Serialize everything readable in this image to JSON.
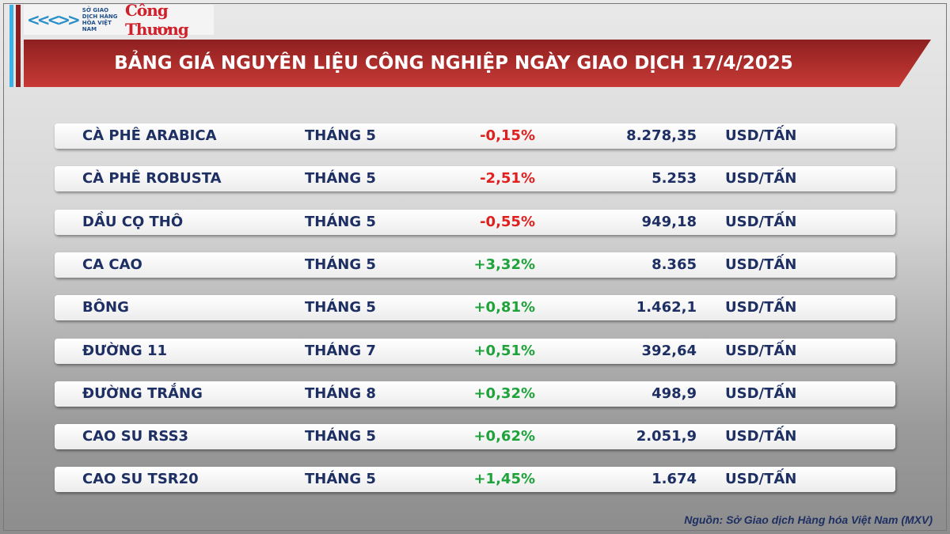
{
  "logo": {
    "org": "SỞ GIAO DỊCH HÀNG HÓA VIỆT NAM",
    "brand": "Công Thương"
  },
  "title": "BẢNG GIÁ NGUYÊN LIỆU CÔNG NGHIỆP NGÀY GIAO DỊCH 17/4/2025",
  "colors": {
    "negative": "#e0201e",
    "positive": "#1ea33a",
    "text": "#1e2f63",
    "banner": "#b0302c"
  },
  "rows": [
    {
      "name": "CÀ PHÊ ARABICA",
      "month": "THÁNG 5",
      "change": "-0,15%",
      "price": "8.278,35",
      "unit": "USD/TẤN"
    },
    {
      "name": "CÀ PHÊ ROBUSTA",
      "month": "THÁNG 5",
      "change": "-2,51%",
      "price": "5.253",
      "unit": "USD/TẤN"
    },
    {
      "name": "DẦU CỌ THÔ",
      "month": "THÁNG 5",
      "change": "-0,55%",
      "price": "949,18",
      "unit": "USD/TẤN"
    },
    {
      "name": "CA CAO",
      "month": "THÁNG 5",
      "change": "+3,32%",
      "price": "8.365",
      "unit": "USD/TẤN"
    },
    {
      "name": "BÔNG",
      "month": "THÁNG 5",
      "change": "+0,81%",
      "price": "1.462,1",
      "unit": "USD/TẤN"
    },
    {
      "name": "ĐƯỜNG 11",
      "month": "THÁNG 7",
      "change": "+0,51%",
      "price": "392,64",
      "unit": "USD/TẤN"
    },
    {
      "name": "ĐƯỜNG TRẮNG",
      "month": "THÁNG 8",
      "change": "+0,32%",
      "price": "498,9",
      "unit": "USD/TẤN"
    },
    {
      "name": "CAO SU RSS3",
      "month": "THÁNG 5",
      "change": "+0,62%",
      "price": "2.051,9",
      "unit": "USD/TẤN"
    },
    {
      "name": "CAO SU TSR20",
      "month": "THÁNG 5",
      "change": "+1,45%",
      "price": "1.674",
      "unit": "USD/TẤN"
    }
  ],
  "source": "Nguồn: Sở Giao dịch Hàng hóa Việt Nam (MXV)"
}
